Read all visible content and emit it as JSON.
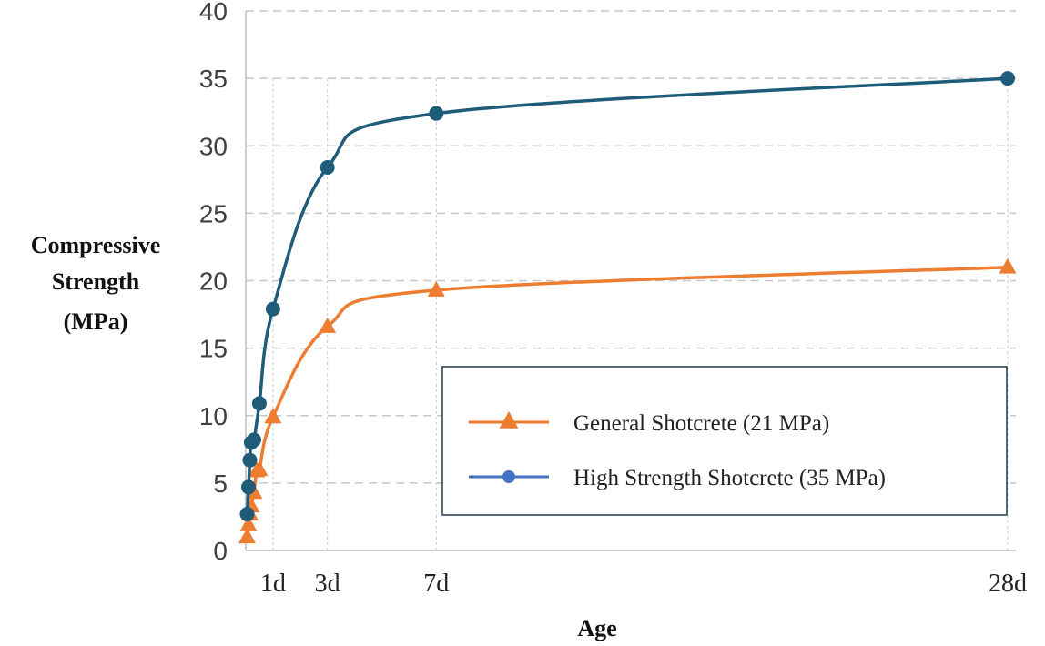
{
  "chart_data": {
    "type": "line",
    "xlabel": "Age",
    "ylabel_lines": [
      "Compressive",
      "Strength",
      "(MPa)"
    ],
    "ylim": [
      0,
      40
    ],
    "y_ticks": [
      0,
      5,
      10,
      15,
      20,
      25,
      30,
      35,
      40
    ],
    "xlim": [
      0,
      28.3
    ],
    "x_tick_labels": [
      {
        "value": 1,
        "label": "1d"
      },
      {
        "value": 3,
        "label": "3d"
      },
      {
        "value": 7,
        "label": "7d"
      },
      {
        "value": 28,
        "label": "28d"
      }
    ],
    "grid": "horizontal dashed",
    "legend_position": "bottom-right",
    "series": [
      {
        "name": "General Shotcrete (21 MPa)",
        "marker": "triangle",
        "color": "#ED7D31",
        "x": [
          0.05,
          0.1,
          0.15,
          0.2,
          0.3,
          0.4,
          0.5,
          1,
          3,
          7,
          28
        ],
        "y": [
          1.0,
          1.9,
          2.7,
          3.3,
          4.3,
          5.9,
          6.0,
          9.9,
          16.6,
          19.3,
          21.0
        ]
      },
      {
        "name": "High Strength Shotcrete (35 MPa)",
        "marker": "circle",
        "color": "#1F5C7A",
        "legend_color": "#4472C4",
        "x": [
          0.05,
          0.1,
          0.15,
          0.2,
          0.3,
          0.5,
          1,
          3,
          7,
          28
        ],
        "y": [
          2.7,
          4.7,
          6.7,
          8.0,
          8.2,
          10.9,
          17.9,
          28.4,
          32.4,
          35.0
        ]
      }
    ]
  }
}
